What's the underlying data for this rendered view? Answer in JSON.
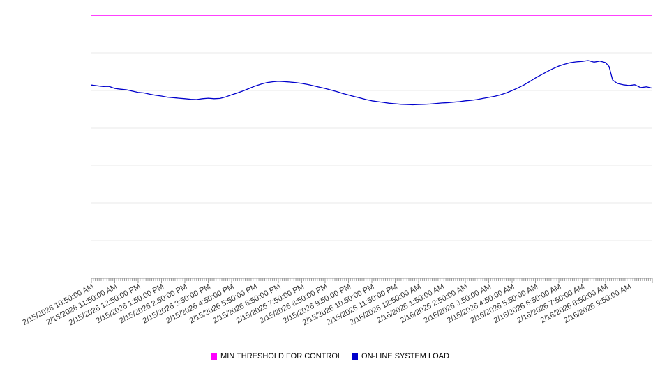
{
  "chart_data": {
    "type": "line",
    "title": "",
    "xlabel": "",
    "ylabel": "",
    "ylim": [
      0,
      100
    ],
    "x_hours_span": 24,
    "grid": true,
    "legend_position": "bottom-center",
    "x_labels": [
      "2/15/2026 10:50:00 AM",
      "2/15/2026 11:50:00 AM",
      "2/15/2026 12:50:00 PM",
      "2/15/2026 1:50:00 PM",
      "2/15/2026 2:50:00 PM",
      "2/15/2026 3:50:00 PM",
      "2/15/2026 4:50:00 PM",
      "2/15/2026 5:50:00 PM",
      "2/15/2026 6:50:00 PM",
      "2/15/2026 7:50:00 PM",
      "2/15/2026 8:50:00 PM",
      "2/15/2026 9:50:00 PM",
      "2/15/2026 10:50:00 PM",
      "2/15/2026 11:50:00 PM",
      "2/16/2026 12:50:00 AM",
      "2/16/2026 1:50:00 AM",
      "2/16/2026 2:50:00 AM",
      "2/16/2026 3:50:00 AM",
      "2/16/2026 4:50:00 AM",
      "2/16/2026 5:50:00 AM",
      "2/16/2026 6:50:00 AM",
      "2/16/2026 7:50:00 AM",
      "2/16/2026 8:50:00 AM",
      "2/16/2026 9:50:00 AM"
    ],
    "series": [
      {
        "name": "MIN THRESHOLD FOR CONTROL",
        "type": "threshold",
        "color": "#ff00ff",
        "value": 100
      },
      {
        "name": "ON-LINE SYSTEM LOAD",
        "type": "line",
        "color": "#0000cc",
        "points": [
          [
            0,
            73.5
          ],
          [
            0.25,
            73.2
          ],
          [
            0.5,
            72.9
          ],
          [
            0.75,
            73.0
          ],
          [
            1,
            72.2
          ],
          [
            1.25,
            71.9
          ],
          [
            1.5,
            71.7
          ],
          [
            1.75,
            71.2
          ],
          [
            2,
            70.7
          ],
          [
            2.25,
            70.5
          ],
          [
            2.5,
            70.0
          ],
          [
            2.75,
            69.6
          ],
          [
            3,
            69.3
          ],
          [
            3.25,
            68.9
          ],
          [
            3.5,
            68.7
          ],
          [
            3.75,
            68.5
          ],
          [
            4,
            68.3
          ],
          [
            4.25,
            68.1
          ],
          [
            4.5,
            68.0
          ],
          [
            4.75,
            68.3
          ],
          [
            5,
            68.5
          ],
          [
            5.25,
            68.3
          ],
          [
            5.5,
            68.4
          ],
          [
            5.75,
            69.0
          ],
          [
            6,
            69.8
          ],
          [
            6.25,
            70.5
          ],
          [
            6.5,
            71.3
          ],
          [
            6.75,
            72.2
          ],
          [
            7,
            73.1
          ],
          [
            7.25,
            73.8
          ],
          [
            7.5,
            74.4
          ],
          [
            7.75,
            74.7
          ],
          [
            8,
            74.9
          ],
          [
            8.25,
            74.8
          ],
          [
            8.5,
            74.6
          ],
          [
            8.75,
            74.4
          ],
          [
            9,
            74.1
          ],
          [
            9.25,
            73.7
          ],
          [
            9.5,
            73.2
          ],
          [
            9.75,
            72.7
          ],
          [
            10,
            72.2
          ],
          [
            10.25,
            71.6
          ],
          [
            10.5,
            71.0
          ],
          [
            10.75,
            70.3
          ],
          [
            11,
            69.7
          ],
          [
            11.25,
            69.1
          ],
          [
            11.5,
            68.6
          ],
          [
            11.75,
            68.0
          ],
          [
            12,
            67.5
          ],
          [
            12.25,
            67.2
          ],
          [
            12.5,
            66.9
          ],
          [
            12.75,
            66.6
          ],
          [
            13,
            66.4
          ],
          [
            13.25,
            66.2
          ],
          [
            13.5,
            66.1
          ],
          [
            13.75,
            66.0
          ],
          [
            14,
            66.1
          ],
          [
            14.25,
            66.2
          ],
          [
            14.5,
            66.3
          ],
          [
            14.75,
            66.5
          ],
          [
            15,
            66.7
          ],
          [
            15.25,
            66.8
          ],
          [
            15.5,
            67.0
          ],
          [
            15.75,
            67.2
          ],
          [
            16,
            67.5
          ],
          [
            16.25,
            67.7
          ],
          [
            16.5,
            68.0
          ],
          [
            16.75,
            68.4
          ],
          [
            17,
            68.8
          ],
          [
            17.25,
            69.2
          ],
          [
            17.5,
            69.8
          ],
          [
            17.75,
            70.5
          ],
          [
            18,
            71.4
          ],
          [
            18.25,
            72.4
          ],
          [
            18.5,
            73.5
          ],
          [
            18.75,
            74.8
          ],
          [
            19,
            76.2
          ],
          [
            19.25,
            77.4
          ],
          [
            19.5,
            78.6
          ],
          [
            19.75,
            79.7
          ],
          [
            20,
            80.7
          ],
          [
            20.25,
            81.4
          ],
          [
            20.5,
            82.0
          ],
          [
            20.75,
            82.3
          ],
          [
            21,
            82.5
          ],
          [
            21.25,
            82.8
          ],
          [
            21.5,
            82.2
          ],
          [
            21.75,
            82.6
          ],
          [
            22,
            82.0
          ],
          [
            22.15,
            80.5
          ],
          [
            22.3,
            75.4
          ],
          [
            22.5,
            74.1
          ],
          [
            22.75,
            73.6
          ],
          [
            23,
            73.3
          ],
          [
            23.25,
            73.6
          ],
          [
            23.5,
            72.5
          ],
          [
            23.75,
            72.8
          ],
          [
            24,
            72.3
          ]
        ]
      }
    ]
  },
  "legend": {
    "items": [
      {
        "label": "MIN THRESHOLD FOR CONTROL",
        "color": "#ff00ff"
      },
      {
        "label": "ON-LINE SYSTEM LOAD",
        "color": "#0000cc"
      }
    ]
  }
}
